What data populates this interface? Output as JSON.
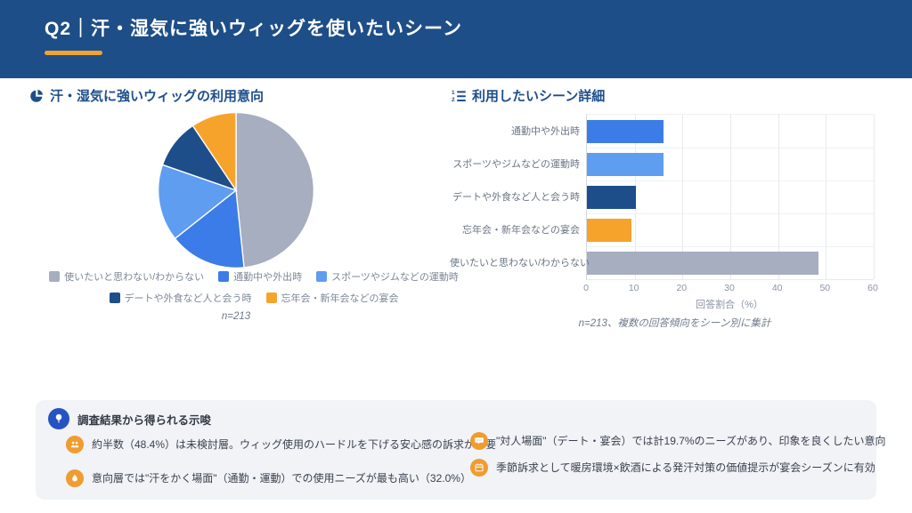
{
  "header": {
    "title": "Q2｜汗・湿気に強いウィッグを使いたいシーン",
    "bg_color": "#1d4e87",
    "accent_color": "#f0a232"
  },
  "pie_section": {
    "icon": "pie-chart-icon",
    "title": "汗・湿気に強いウィッグの利用意向",
    "note": "n=213"
  },
  "bar_section": {
    "icon": "ordered-list-icon",
    "title": "利用したいシーン詳細",
    "xlabel": "回答割合（%）",
    "note": "n=213、複数の回答傾向をシーン別に集計"
  },
  "insights": {
    "title": "調査結果から得られる示唆",
    "items": [
      {
        "icon": "people-group-icon",
        "text": "約半数（48.4%）は未検討層。ウィッグ使用のハードルを下げる安心感の訴求が必要"
      },
      {
        "icon": "droplet-icon",
        "text": "意向層では\"汗をかく場面\"（通勤・運動）での使用ニーズが最も高い（32.0%）"
      },
      {
        "icon": "conversation-icon",
        "text": "\"対人場面\"（デート・宴会）では計19.7%のニーズがあり、印象を良くしたい意向"
      },
      {
        "icon": "calendar-icon",
        "text": "季節訴求として暖房環境×飲酒による発汗対策の価値提示が宴会シーズンに有効"
      }
    ]
  },
  "chart_data": [
    {
      "type": "pie",
      "title": "汗・湿気に強いウィッグの利用意向",
      "labels": [
        "使いたいと思わない/わからない",
        "通勤中や外出時",
        "スポーツやジムなどの運動時",
        "デートや外食など人と会う時",
        "忘年会・新年会などの宴会"
      ],
      "values": [
        48.4,
        16.0,
        16.0,
        10.3,
        9.4
      ],
      "colors": [
        "#a6aebf",
        "#3c7ce8",
        "#5f9df1",
        "#1d4e89",
        "#f6a32c"
      ],
      "start_angle_deg": -90,
      "direction": "clockwise",
      "legend_position": "bottom",
      "legend_rows": [
        [
          0,
          1,
          2
        ],
        [
          3,
          4
        ]
      ],
      "note": "n=213"
    },
    {
      "type": "bar",
      "orientation": "horizontal",
      "title": "利用したいシーン詳細",
      "categories": [
        "通勤中や外出時",
        "スポーツやジムなどの運動時",
        "デートや外食など人と会う時",
        "忘年会・新年会などの宴会",
        "使いたいと思わない/わからない"
      ],
      "values": [
        16.0,
        16.0,
        10.3,
        9.4,
        48.4
      ],
      "colors": [
        "#3c7ce8",
        "#5f9df1",
        "#1d4e89",
        "#f6a32c",
        "#a6aebf"
      ],
      "xlabel": "回答割合（%）",
      "xlim": [
        0,
        60
      ],
      "xticks": [
        0,
        10,
        20,
        30,
        40,
        50,
        60
      ],
      "grid": true,
      "note": "n=213、複数の回答傾向をシーン別に集計"
    }
  ]
}
